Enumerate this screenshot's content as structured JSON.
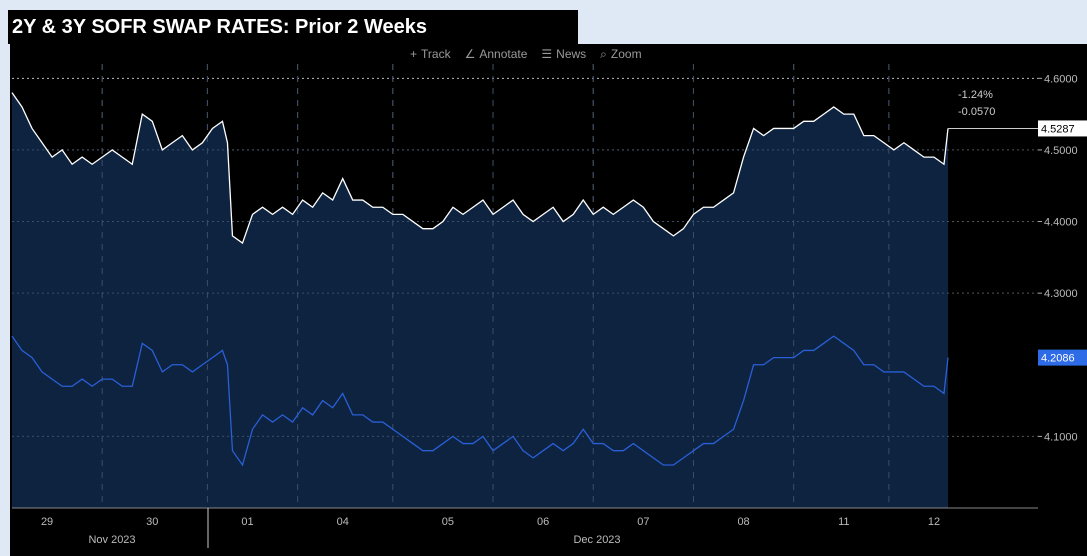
{
  "title": "2Y & 3Y SOFR SWAP RATES: Prior 2 Weeks",
  "toolbar": {
    "track_label": "Track",
    "annotate_label": "Annotate",
    "news_label": "News",
    "zoom_label": "Zoom",
    "track_icon": "crosshair-icon",
    "annotate_icon": "pencil-icon",
    "news_icon": "news-icon",
    "zoom_icon": "magnifier-icon"
  },
  "chart_data": {
    "type": "line",
    "x_tick_labels": [
      "29",
      "30",
      "01",
      "04",
      "05",
      "06",
      "07",
      "08",
      "11",
      "12"
    ],
    "x_month_labels": [
      "Nov 2023",
      "Dec 2023"
    ],
    "y_tick_labels": [
      "4.6000",
      "4.5000",
      "4.4000",
      "4.3000",
      "4.1000"
    ],
    "y_ticks": [
      4.6,
      4.5,
      4.4,
      4.3,
      4.1
    ],
    "ylim": [
      4.0,
      4.62
    ],
    "grid": true,
    "annotation": {
      "change_pct": "-1.24%",
      "change_abs": "-0.0570"
    },
    "colors": {
      "background": "#000000",
      "area_fill": "#0d2340",
      "series_1": "#ffffff",
      "series_2": "#2a5fd6",
      "label_2": "#2e6be6"
    },
    "series": [
      {
        "last_label": "4.5287",
        "x": [
          0,
          0.1,
          0.2,
          0.3,
          0.4,
          0.5,
          0.6,
          0.7,
          0.8,
          0.9,
          1.0,
          1.1,
          1.2,
          1.3,
          1.4,
          1.5,
          1.6,
          1.7,
          1.8,
          1.9,
          2.0,
          2.1,
          2.15,
          2.2,
          2.3,
          2.4,
          2.5,
          2.6,
          2.7,
          2.8,
          2.9,
          3.0,
          3.1,
          3.2,
          3.3,
          3.4,
          3.5,
          3.6,
          3.7,
          3.8,
          3.9,
          4.0,
          4.1,
          4.2,
          4.3,
          4.4,
          4.5,
          4.6,
          4.7,
          4.8,
          4.9,
          5.0,
          5.1,
          5.2,
          5.3,
          5.4,
          5.5,
          5.6,
          5.7,
          5.8,
          5.9,
          6.0,
          6.1,
          6.2,
          6.3,
          6.4,
          6.5,
          6.6,
          6.7,
          6.8,
          6.9,
          7.0,
          7.1,
          7.2,
          7.3,
          7.4,
          7.5,
          7.6,
          7.7,
          7.8,
          7.9,
          8.0,
          8.1,
          8.2,
          8.3,
          8.4,
          8.5,
          8.6,
          8.7,
          8.8,
          8.9,
          9.0,
          9.1,
          9.2,
          9.3,
          9.34
        ],
        "values": [
          4.58,
          4.56,
          4.53,
          4.51,
          4.49,
          4.5,
          4.48,
          4.49,
          4.48,
          4.49,
          4.5,
          4.49,
          4.48,
          4.55,
          4.54,
          4.5,
          4.51,
          4.52,
          4.5,
          4.51,
          4.53,
          4.54,
          4.51,
          4.38,
          4.37,
          4.41,
          4.42,
          4.41,
          4.42,
          4.41,
          4.43,
          4.42,
          4.44,
          4.43,
          4.46,
          4.43,
          4.43,
          4.42,
          4.42,
          4.41,
          4.41,
          4.4,
          4.39,
          4.39,
          4.4,
          4.42,
          4.41,
          4.42,
          4.43,
          4.41,
          4.42,
          4.43,
          4.41,
          4.4,
          4.41,
          4.42,
          4.4,
          4.41,
          4.43,
          4.41,
          4.42,
          4.41,
          4.42,
          4.43,
          4.42,
          4.4,
          4.39,
          4.38,
          4.39,
          4.41,
          4.42,
          4.42,
          4.43,
          4.44,
          4.49,
          4.53,
          4.52,
          4.53,
          4.53,
          4.53,
          4.54,
          4.54,
          4.55,
          4.56,
          4.55,
          4.55,
          4.52,
          4.52,
          4.51,
          4.5,
          4.51,
          4.5,
          4.49,
          4.49,
          4.48,
          4.53
        ]
      },
      {
        "last_label": "4.2086",
        "x": [
          0,
          0.1,
          0.2,
          0.3,
          0.4,
          0.5,
          0.6,
          0.7,
          0.8,
          0.9,
          1.0,
          1.1,
          1.2,
          1.3,
          1.4,
          1.5,
          1.6,
          1.7,
          1.8,
          1.9,
          2.0,
          2.1,
          2.15,
          2.2,
          2.3,
          2.4,
          2.5,
          2.6,
          2.7,
          2.8,
          2.9,
          3.0,
          3.1,
          3.2,
          3.3,
          3.4,
          3.5,
          3.6,
          3.7,
          3.8,
          3.9,
          4.0,
          4.1,
          4.2,
          4.3,
          4.4,
          4.5,
          4.6,
          4.7,
          4.8,
          4.9,
          5.0,
          5.1,
          5.2,
          5.3,
          5.4,
          5.5,
          5.6,
          5.7,
          5.8,
          5.9,
          6.0,
          6.1,
          6.2,
          6.3,
          6.4,
          6.5,
          6.6,
          6.7,
          6.8,
          6.9,
          7.0,
          7.1,
          7.2,
          7.3,
          7.4,
          7.5,
          7.6,
          7.7,
          7.8,
          7.9,
          8.0,
          8.1,
          8.2,
          8.3,
          8.4,
          8.5,
          8.6,
          8.7,
          8.8,
          8.9,
          9.0,
          9.1,
          9.2,
          9.3,
          9.34
        ],
        "values": [
          4.24,
          4.22,
          4.21,
          4.19,
          4.18,
          4.17,
          4.17,
          4.18,
          4.17,
          4.18,
          4.18,
          4.17,
          4.17,
          4.23,
          4.22,
          4.19,
          4.2,
          4.2,
          4.19,
          4.2,
          4.21,
          4.22,
          4.2,
          4.08,
          4.06,
          4.11,
          4.13,
          4.12,
          4.13,
          4.12,
          4.14,
          4.13,
          4.15,
          4.14,
          4.16,
          4.13,
          4.13,
          4.12,
          4.12,
          4.11,
          4.1,
          4.09,
          4.08,
          4.08,
          4.09,
          4.1,
          4.09,
          4.09,
          4.1,
          4.08,
          4.09,
          4.1,
          4.08,
          4.07,
          4.08,
          4.09,
          4.08,
          4.09,
          4.11,
          4.09,
          4.09,
          4.08,
          4.08,
          4.09,
          4.08,
          4.07,
          4.06,
          4.06,
          4.07,
          4.08,
          4.09,
          4.09,
          4.1,
          4.11,
          4.15,
          4.2,
          4.2,
          4.21,
          4.21,
          4.21,
          4.22,
          4.22,
          4.23,
          4.24,
          4.23,
          4.22,
          4.2,
          4.2,
          4.19,
          4.19,
          4.19,
          4.18,
          4.17,
          4.17,
          4.16,
          4.21
        ]
      }
    ]
  }
}
